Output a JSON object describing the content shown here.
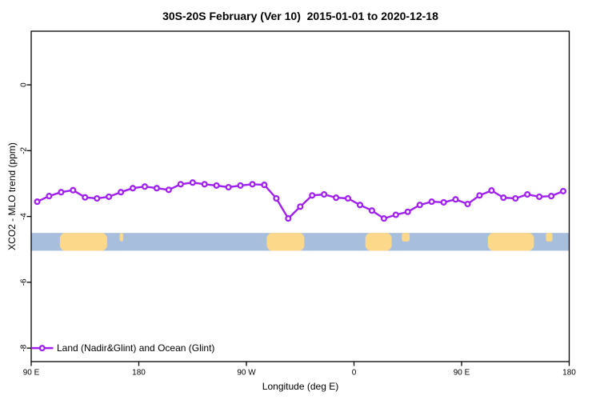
{
  "window": {
    "title": "30S-20S February (Ver 10)  2015-01-01 to 2020-12-18"
  },
  "chart_data": {
    "type": "line",
    "title": "30S-20S February (Ver 10)  2015-01-01 to 2020-12-18",
    "xlabel": "Longitude (deg E)",
    "ylabel": "XCO2 - MLO trend (ppm)",
    "xlim": [
      90,
      540
    ],
    "ylim": [
      -8.41,
      1.63
    ],
    "grid": false,
    "xticks": [
      {
        "v": 90,
        "label": "90 E"
      },
      {
        "v": 180,
        "label": "180"
      },
      {
        "v": 270,
        "label": "90 W"
      },
      {
        "v": 360,
        "label": "0"
      },
      {
        "v": 450,
        "label": "90 E"
      },
      {
        "v": 540,
        "label": "180"
      }
    ],
    "yticks": [
      {
        "v": 0,
        "label": "0"
      },
      {
        "v": -2,
        "label": "-2"
      },
      {
        "v": -4,
        "label": "-4"
      },
      {
        "v": -6,
        "label": "-6"
      },
      {
        "v": -8,
        "label": "-8"
      }
    ],
    "series": [
      {
        "name": "Land (Nadir&Glint) and Ocean (Glint)",
        "color": "#a020f0",
        "marker": "open-circle",
        "x": [
          95,
          105,
          115,
          125,
          135,
          145,
          155,
          165,
          175,
          185,
          195,
          205,
          215,
          225,
          235,
          245,
          255,
          265,
          275,
          285,
          295,
          305,
          315,
          325,
          335,
          345,
          355,
          365,
          375,
          385,
          395,
          405,
          415,
          425,
          435,
          445,
          455,
          465,
          475,
          485,
          495,
          505,
          515,
          525,
          535
        ],
        "y": [
          -3.55,
          -3.38,
          -3.26,
          -3.2,
          -3.42,
          -3.45,
          -3.4,
          -3.26,
          -3.14,
          -3.09,
          -3.14,
          -3.19,
          -3.02,
          -2.97,
          -3.02,
          -3.06,
          -3.11,
          -3.06,
          -3.02,
          -3.04,
          -3.45,
          -4.06,
          -3.7,
          -3.36,
          -3.33,
          -3.43,
          -3.45,
          -3.65,
          -3.82,
          -4.06,
          -3.95,
          -3.86,
          -3.65,
          -3.55,
          -3.57,
          -3.48,
          -3.62,
          -3.36,
          -3.21,
          -3.43,
          -3.45,
          -3.33,
          -3.4,
          -3.38,
          -3.23
        ]
      }
    ],
    "legend": {
      "position": "bottom-left",
      "label": "Land (Nadir&Glint) and Ocean (Glint)"
    },
    "map_band": {
      "description": "land-ocean strip",
      "y_top": -4.5,
      "y_bottom": -5.04,
      "ocean_color": "#a8bedd",
      "land_color": "#fcd88a",
      "land_patches": [
        {
          "x0": 114,
          "x1": 153.5,
          "shape": "full"
        },
        {
          "x0": 164,
          "x1": 167,
          "shape": "top"
        },
        {
          "x0": 287,
          "x1": 318.5,
          "shape": "full"
        },
        {
          "x0": 369.5,
          "x1": 391.5,
          "shape": "full"
        },
        {
          "x0": 400,
          "x1": 406.5,
          "shape": "top"
        },
        {
          "x0": 472,
          "x1": 510.5,
          "shape": "full"
        },
        {
          "x0": 520.5,
          "x1": 526,
          "shape": "top"
        }
      ]
    }
  }
}
